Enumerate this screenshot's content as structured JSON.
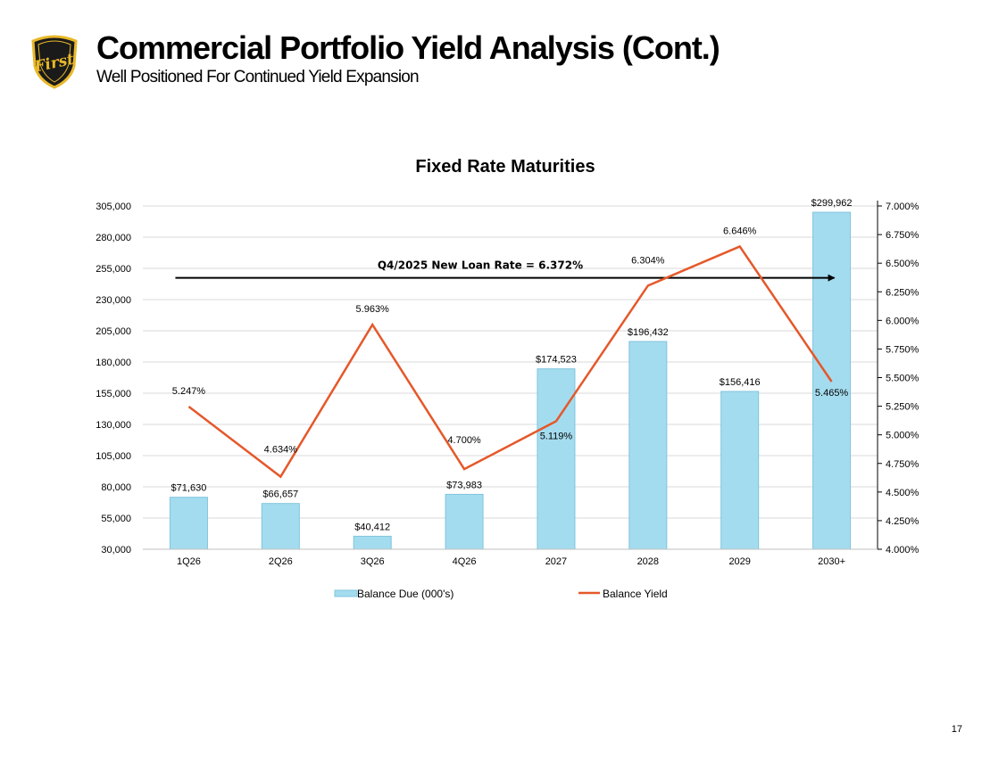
{
  "header": {
    "title": "Commercial Portfolio Yield Analysis (Cont.)",
    "subtitle": "Well Positioned For Continued Yield Expansion",
    "logo_text": "First"
  },
  "page_number": "17",
  "colors": {
    "bar_fill": "#A4DCEF",
    "bar_stroke": "#7FC4DD",
    "line": "#E5582A",
    "grid": "#D9D9D9",
    "axis_text": "#000000",
    "logo_gold": "#E8B82A",
    "logo_dark": "#1A1A1A"
  },
  "chart_data": {
    "type": "bar",
    "title": "Fixed Rate Maturities",
    "categories": [
      "1Q26",
      "2Q26",
      "3Q26",
      "4Q26",
      "2027",
      "2028",
      "2029",
      "2030+"
    ],
    "series": [
      {
        "name": "Balance Due (000's)",
        "type": "bar",
        "axis": "left",
        "values": [
          71630,
          66657,
          40412,
          73983,
          174523,
          196432,
          156416,
          299962
        ],
        "labels": [
          "$71,630",
          "$66,657",
          "$40,412",
          "$73,983",
          "$174,523",
          "$196,432",
          "$156,416",
          "$299,962"
        ]
      },
      {
        "name": "Balance Yield",
        "type": "line",
        "axis": "right",
        "values": [
          5.247,
          4.634,
          5.963,
          4.7,
          5.119,
          6.304,
          6.646,
          5.465
        ],
        "labels": [
          "5.247%",
          "4.634%",
          "5.963%",
          "4.700%",
          "5.119%",
          "6.304%",
          "6.646%",
          "5.465%"
        ]
      }
    ],
    "left_axis": {
      "ylim": [
        30000,
        305000
      ],
      "ticks": [
        30000,
        55000,
        80000,
        105000,
        130000,
        155000,
        180000,
        205000,
        230000,
        255000,
        280000,
        305000
      ],
      "tick_labels": [
        "30,000",
        "55,000",
        "80,000",
        "105,000",
        "130,000",
        "155,000",
        "180,000",
        "205,000",
        "230,000",
        "255,000",
        "280,000",
        "305,000"
      ]
    },
    "right_axis": {
      "ylim": [
        4.0,
        7.0
      ],
      "ticks": [
        4.0,
        4.25,
        4.5,
        4.75,
        5.0,
        5.25,
        5.5,
        5.75,
        6.0,
        6.25,
        6.5,
        6.75,
        7.0
      ],
      "tick_labels": [
        "4.000%",
        "4.250%",
        "4.500%",
        "4.750%",
        "5.000%",
        "5.250%",
        "5.500%",
        "5.750%",
        "6.000%",
        "6.250%",
        "6.500%",
        "6.750%",
        "7.000%"
      ]
    },
    "annotation": {
      "text": "Q4/2025 New Loan Rate = 6.372%",
      "value": 6.372,
      "axis": "right",
      "arrow": true
    },
    "grid": true,
    "legend": "bottom-center"
  }
}
